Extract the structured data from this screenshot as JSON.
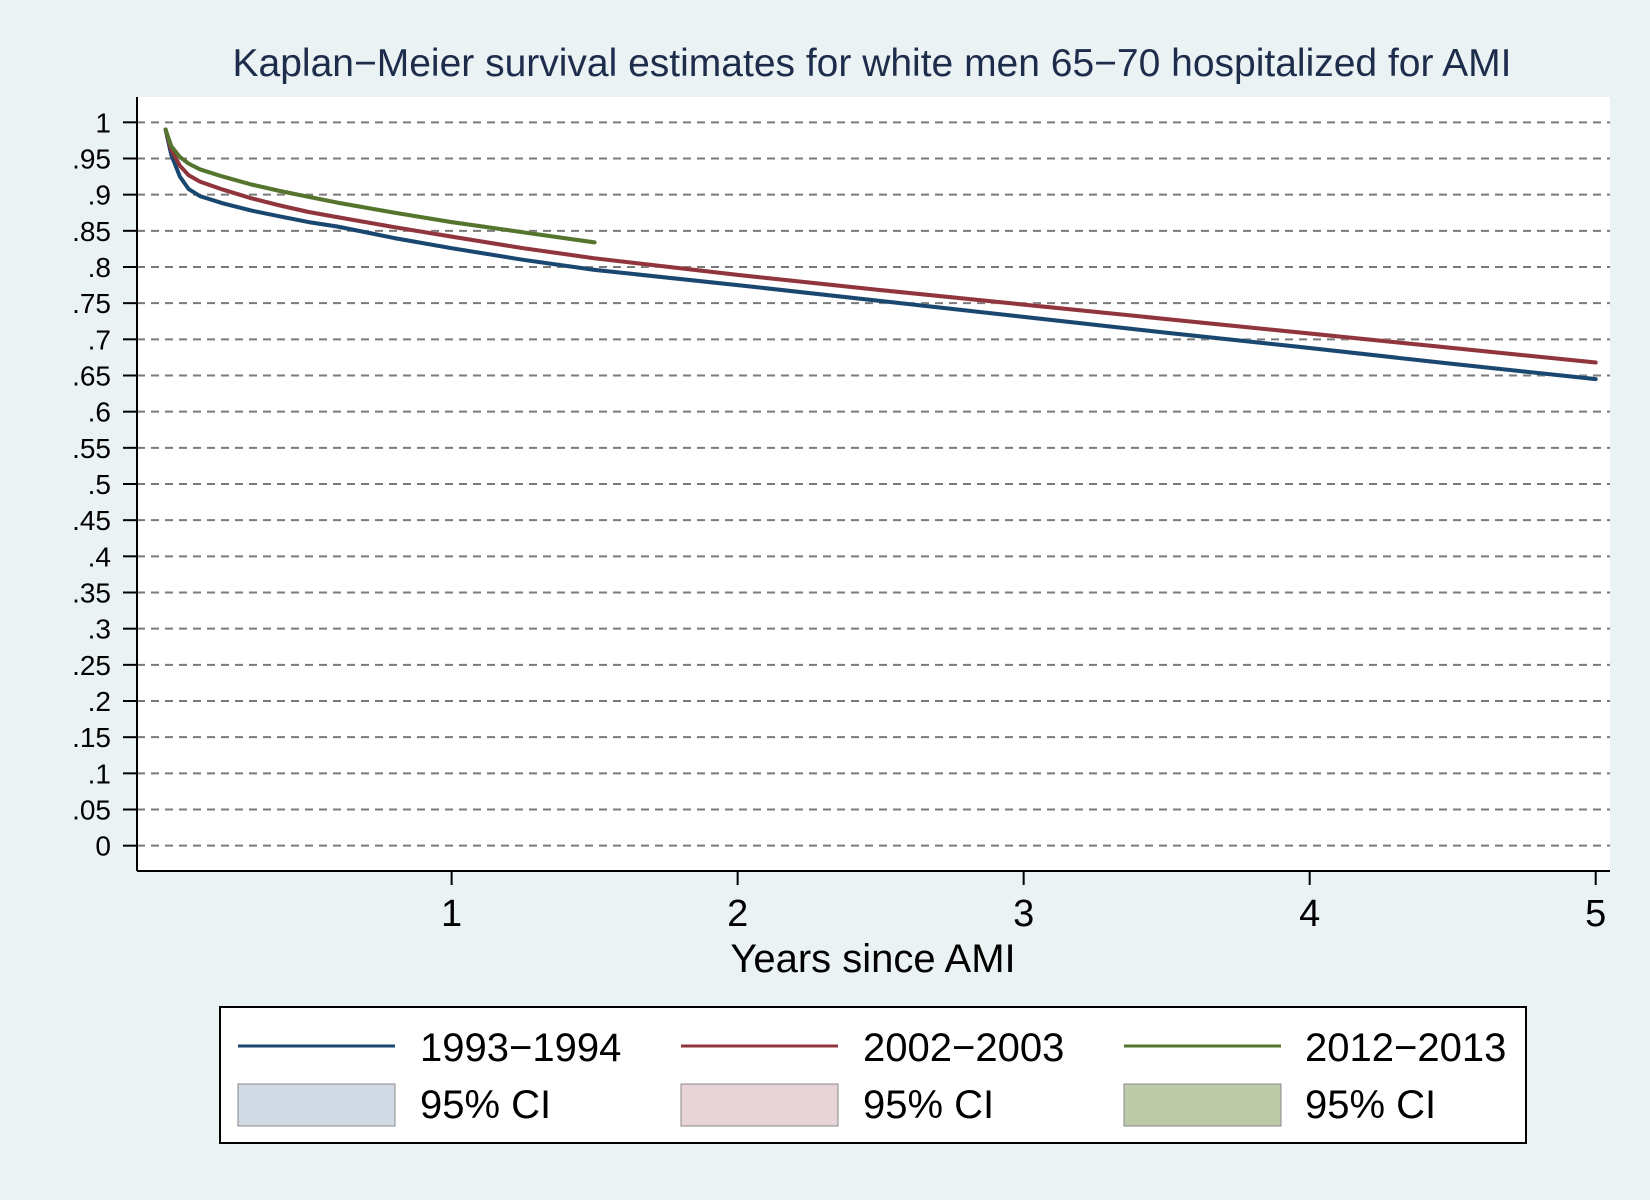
{
  "chart_data": {
    "type": "line",
    "title": "Kaplan−Meier survival estimates for white men 65−70 hospitalized for AMI",
    "xlabel": "Years since AMI",
    "ylabel": "",
    "xlim": [
      -0.1,
      5.05
    ],
    "ylim": [
      -0.035,
      1.035
    ],
    "x_ticks": [
      1,
      2,
      3,
      4,
      5
    ],
    "x_tick_labels": [
      "1",
      "2",
      "3",
      "4",
      "5"
    ],
    "y_ticks": [
      1,
      0.95,
      0.9,
      0.85,
      0.8,
      0.75,
      0.7,
      0.65,
      0.6,
      0.55,
      0.5,
      0.45,
      0.4,
      0.35,
      0.3,
      0.25,
      0.2,
      0.15,
      0.1,
      0.05,
      0
    ],
    "y_tick_labels": [
      "1",
      ".95",
      ".9",
      ".85",
      ".8",
      ".75",
      ".7",
      ".65",
      ".6",
      ".55",
      ".5",
      ".45",
      ".4",
      ".35",
      ".3",
      ".25",
      ".2",
      ".15",
      ".1",
      ".05",
      "0"
    ],
    "grid": "horizontal dashed",
    "legend_position": "bottom",
    "series": [
      {
        "name": "1993−1994",
        "color": "#1a476f",
        "ci_label": "95% CI",
        "ci_color": "#d1dbe5",
        "x": [
          0,
          0.02,
          0.05,
          0.08,
          0.12,
          0.2,
          0.3,
          0.4,
          0.5,
          0.6,
          0.8,
          1.0,
          1.25,
          1.5,
          2.0,
          2.5,
          3.0,
          3.5,
          4.0,
          4.5,
          5.0
        ],
        "y": [
          0.99,
          0.955,
          0.925,
          0.908,
          0.898,
          0.888,
          0.878,
          0.87,
          0.862,
          0.856,
          0.84,
          0.826,
          0.81,
          0.796,
          0.775,
          0.753,
          0.731,
          0.709,
          0.688,
          0.666,
          0.645
        ]
      },
      {
        "name": "2002−2003",
        "color": "#90353b",
        "ci_label": "95% CI",
        "ci_color": "#e8d4d6",
        "x": [
          0,
          0.02,
          0.05,
          0.08,
          0.12,
          0.2,
          0.3,
          0.4,
          0.5,
          0.6,
          0.8,
          1.0,
          1.25,
          1.5,
          2.0,
          2.5,
          3.0,
          3.5,
          4.0,
          4.5,
          5.0
        ],
        "y": [
          0.99,
          0.962,
          0.94,
          0.927,
          0.918,
          0.907,
          0.895,
          0.885,
          0.876,
          0.869,
          0.855,
          0.842,
          0.826,
          0.812,
          0.789,
          0.768,
          0.748,
          0.728,
          0.708,
          0.688,
          0.668
        ]
      },
      {
        "name": "2012−2013",
        "color": "#55752f",
        "ci_label": "95% CI",
        "ci_color": "#bccaa7",
        "x": [
          0,
          0.02,
          0.05,
          0.08,
          0.12,
          0.2,
          0.3,
          0.4,
          0.5,
          0.6,
          0.8,
          1.0,
          1.25,
          1.5
        ],
        "y": [
          0.99,
          0.967,
          0.952,
          0.943,
          0.935,
          0.925,
          0.914,
          0.905,
          0.897,
          0.889,
          0.875,
          0.862,
          0.848,
          0.834
        ]
      }
    ]
  }
}
